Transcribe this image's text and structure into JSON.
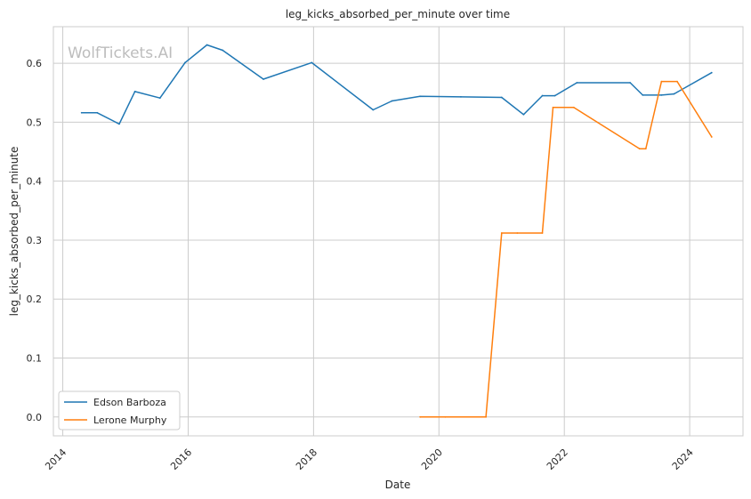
{
  "chart_data": {
    "type": "line",
    "title": "leg_kicks_absorbed_per_minute over time",
    "xlabel": "Date",
    "ylabel": "leg_kicks_absorbed_per_minute",
    "watermark": "WolfTickets.AI",
    "grid": true,
    "legend_position": "lower-left",
    "xlim": [
      2013.85,
      2024.85
    ],
    "ylim": [
      -0.032,
      0.662
    ],
    "x_ticks": [
      "2014",
      "2016",
      "2018",
      "2020",
      "2022",
      "2024"
    ],
    "y_ticks": [
      "0.0",
      "0.1",
      "0.2",
      "0.3",
      "0.4",
      "0.5",
      "0.6"
    ],
    "series": [
      {
        "name": "Edson Barboza",
        "color": "#1f77b4",
        "x": [
          2014.3,
          2014.55,
          2014.9,
          2015.15,
          2015.55,
          2015.95,
          2016.3,
          2016.55,
          2017.2,
          2017.97,
          2018.95,
          2019.25,
          2019.7,
          2020.35,
          2021.0,
          2021.35,
          2021.65,
          2021.85,
          2022.2,
          2023.05,
          2023.25,
          2023.55,
          2023.75,
          2024.35
        ],
        "y": [
          0.516,
          0.516,
          0.497,
          0.552,
          0.541,
          0.601,
          0.631,
          0.622,
          0.573,
          0.601,
          0.521,
          0.536,
          0.544,
          0.543,
          0.542,
          0.513,
          0.545,
          0.545,
          0.567,
          0.567,
          0.546,
          0.546,
          0.548,
          0.584
        ]
      },
      {
        "name": "Lerone Murphy",
        "color": "#ff7f0e",
        "x": [
          2019.7,
          2020.1,
          2020.75,
          2021.0,
          2021.25,
          2021.65,
          2021.82,
          2022.15,
          2023.2,
          2023.3,
          2023.55,
          2023.8,
          2024.35
        ],
        "y": [
          0.0,
          0.0,
          0.0,
          0.312,
          0.312,
          0.312,
          0.525,
          0.525,
          0.455,
          0.455,
          0.569,
          0.569,
          0.475
        ]
      }
    ]
  }
}
